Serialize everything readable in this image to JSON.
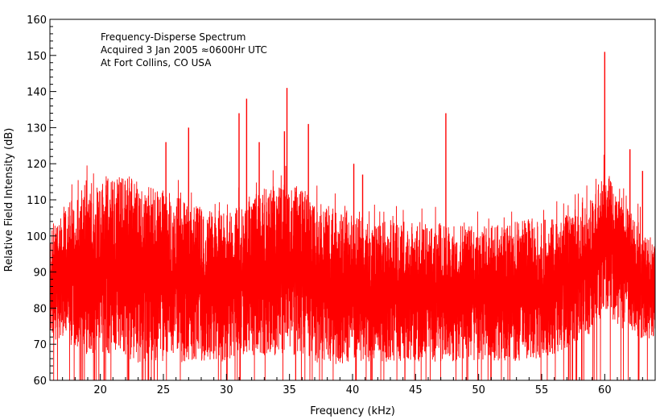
{
  "chart_data": {
    "type": "line",
    "title": "",
    "xlabel": "Frequency (kHz)",
    "ylabel": "Relative Field Intensity (dB)",
    "xlim": [
      16,
      64
    ],
    "ylim": [
      60,
      160
    ],
    "x_ticks": [
      20,
      25,
      30,
      35,
      40,
      45,
      50,
      55,
      60
    ],
    "y_ticks": [
      60,
      70,
      80,
      90,
      100,
      110,
      120,
      130,
      140,
      150,
      160
    ],
    "grid": false,
    "legend": "none",
    "annotations": [
      "Frequency-Disperse Spectrum",
      "Acquired 3 Jan 2005 ≈0600Hr UTC",
      "At Fort Collins, CO USA"
    ],
    "series": [
      {
        "color": "#ff0000",
        "envelope_x": [
          16,
          17,
          18,
          19,
          20,
          21,
          22,
          23,
          24,
          25,
          26,
          27,
          28,
          29,
          30,
          31,
          32,
          33,
          34,
          35,
          36,
          37,
          38,
          39,
          40,
          41,
          42,
          43,
          44,
          45,
          46,
          47,
          48,
          49,
          50,
          51,
          52,
          53,
          54,
          55,
          56,
          57,
          58,
          59,
          60,
          61,
          62,
          63,
          64
        ],
        "envelope_upper": [
          100,
          107,
          110,
          114,
          115,
          116,
          116,
          114,
          113,
          112,
          110,
          108,
          107,
          106,
          105,
          108,
          110,
          112,
          113,
          114,
          112,
          110,
          108,
          106,
          105,
          104,
          103,
          103,
          102,
          102,
          102,
          103,
          102,
          102,
          102,
          102,
          103,
          103,
          104,
          104,
          104,
          105,
          106,
          110,
          118,
          112,
          106,
          102,
          98
        ],
        "envelope_lower": [
          72,
          72,
          70,
          68,
          68,
          68,
          67,
          66,
          66,
          66,
          66,
          66,
          66,
          66,
          66,
          68,
          68,
          68,
          68,
          68,
          68,
          66,
          66,
          64,
          66,
          66,
          66,
          66,
          66,
          66,
          66,
          66,
          66,
          66,
          66,
          66,
          66,
          66,
          67,
          67,
          68,
          70,
          72,
          74,
          80,
          76,
          74,
          72,
          72
        ],
        "peaks": [
          {
            "x": 25.2,
            "y": 126
          },
          {
            "x": 27.0,
            "y": 130
          },
          {
            "x": 31.0,
            "y": 134
          },
          {
            "x": 31.6,
            "y": 138
          },
          {
            "x": 32.6,
            "y": 126
          },
          {
            "x": 34.6,
            "y": 129
          },
          {
            "x": 34.8,
            "y": 141
          },
          {
            "x": 36.5,
            "y": 131
          },
          {
            "x": 40.1,
            "y": 120
          },
          {
            "x": 40.8,
            "y": 117
          },
          {
            "x": 47.4,
            "y": 134
          },
          {
            "x": 60.0,
            "y": 151
          },
          {
            "x": 62.0,
            "y": 124
          },
          {
            "x": 63.0,
            "y": 118
          }
        ]
      }
    ]
  }
}
